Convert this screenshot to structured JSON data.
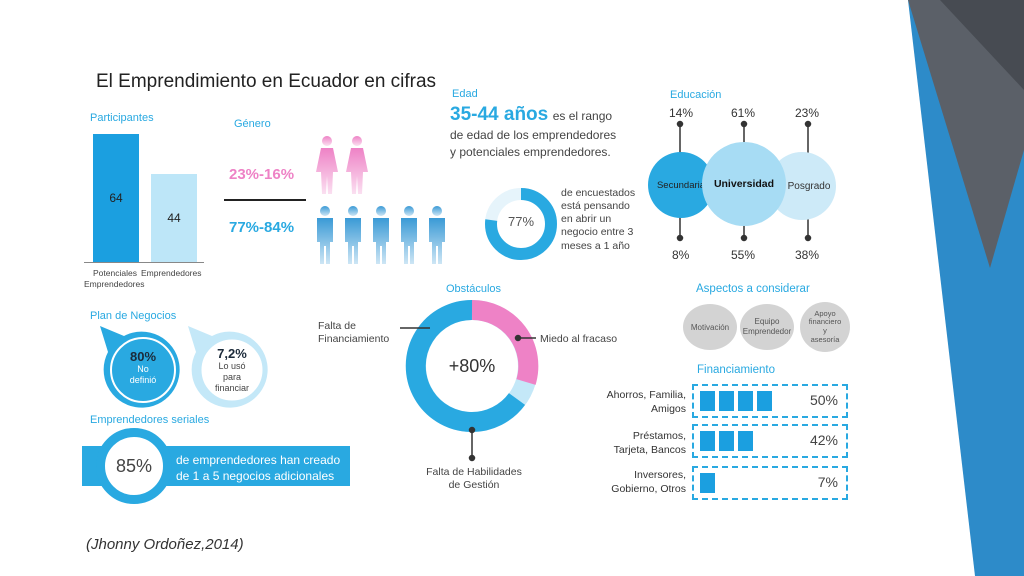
{
  "title": "El Emprendimiento en Ecuador en cifras",
  "citation": "(Jhonny Ordoñez,2014)",
  "participantes": {
    "heading": "Participantes",
    "bars": [
      {
        "label_line1": "Potenciales",
        "label_line2": "Emprendedores",
        "value": 64
      },
      {
        "label_line1": "Emprendedores",
        "label_line2": "",
        "value": 44
      }
    ]
  },
  "genero": {
    "heading": "Género",
    "female_pct": "23%-16%",
    "male_pct": "77%-84%",
    "colors": {
      "female": "#ee82c6",
      "male": "#29a9e1"
    }
  },
  "edad": {
    "heading": "Edad",
    "range": "35-44 años",
    "text_1": "es el rango",
    "text_2": "de edad de los emprendedores",
    "text_3": "y potenciales emprendedores.",
    "donut_label": "77%",
    "donut_value": 77,
    "desc_lines": [
      "de encuestados",
      "está pensando",
      "en abrir un",
      "negocio entre 3",
      "meses a 1 año"
    ]
  },
  "educacion": {
    "heading": "Educación",
    "items": [
      {
        "label": "Secundaria",
        "top": "14%",
        "bottom": "8%"
      },
      {
        "label": "Universidad",
        "top": "61%",
        "bottom": "55%"
      },
      {
        "label": "Posgrado",
        "top": "23%",
        "bottom": "38%"
      }
    ]
  },
  "plan_negocios": {
    "heading": "Plan de Negocios",
    "a_value": "80%",
    "a_lines": [
      "No",
      "definió"
    ],
    "b_value": "7,2%",
    "b_lines": [
      "Lo usó",
      "para",
      "financiar"
    ]
  },
  "obstaculos": {
    "heading": "Obstáculos",
    "center": "+80%",
    "label_financiamiento": [
      "Falta de",
      "Financiamiento"
    ],
    "label_miedo": "Miedo al fracaso",
    "label_habilidades": [
      "Falta de Habilidades",
      "de Gestión"
    ]
  },
  "seriales": {
    "heading": "Emprendedores seriales",
    "value": "85%",
    "line_1": "de emprendedores han creado",
    "line_2": "de 1  a 5 negocios adicionales"
  },
  "aspectos": {
    "heading": "Aspectos a considerar",
    "items": [
      {
        "lines": [
          "Motivación"
        ]
      },
      {
        "lines": [
          "Equipo",
          "Emprendedor"
        ]
      },
      {
        "lines": [
          "Apoyo",
          "financiero",
          "y",
          "asesoría"
        ]
      }
    ]
  },
  "financiamiento": {
    "heading": "Financiamiento",
    "rows": [
      {
        "label_1": "Ahorros, Familia,",
        "label_2": "Amigos",
        "pct": "50%",
        "value": 50
      },
      {
        "label_1": "Préstamos,",
        "label_2": "Tarjeta, Bancos",
        "pct": "42%",
        "value": 42
      },
      {
        "label_1": "Inversores,",
        "label_2": "Gobierno, Otros",
        "pct": "7%",
        "value": 7
      }
    ]
  },
  "chart_data": [
    {
      "type": "bar",
      "title": "Participantes",
      "categories": [
        "Potenciales Emprendedores",
        "Emprendedores"
      ],
      "values": [
        64,
        44
      ]
    },
    {
      "type": "pie",
      "title": "Edad",
      "values": [
        77
      ]
    },
    {
      "type": "pie",
      "title": "Obstáculos",
      "categories": [
        "Falta de Financiamiento",
        "Miedo al fracaso",
        "Falta de Habilidades de Gestión"
      ],
      "center_label": "+80%"
    },
    {
      "type": "bar",
      "title": "Financiamiento",
      "categories": [
        "Ahorros, Familia, Amigos",
        "Préstamos, Tarjeta, Bancos",
        "Inversores, Gobierno, Otros"
      ],
      "values": [
        50,
        42,
        7
      ]
    }
  ]
}
